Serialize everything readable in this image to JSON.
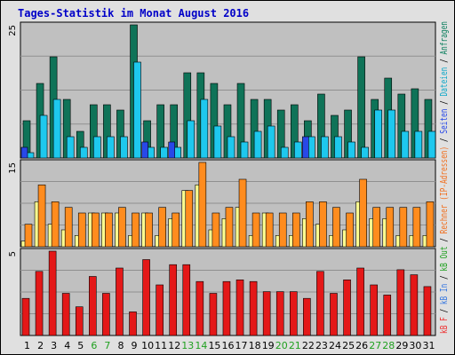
{
  "chart_data": {
    "type": "bar",
    "title": "Tages-Statistik im Monat August 2016",
    "categories": [
      "1",
      "2",
      "3",
      "4",
      "5",
      "6",
      "7",
      "8",
      "9",
      "10",
      "11",
      "12",
      "13",
      "14",
      "15",
      "16",
      "17",
      "18",
      "19",
      "20",
      "21",
      "22",
      "23",
      "24",
      "25",
      "26",
      "27",
      "28",
      "29",
      "30",
      "31"
    ],
    "weekend_days": [
      "6",
      "7",
      "13",
      "14",
      "20",
      "21",
      "27",
      "28"
    ],
    "panels": [
      {
        "name": "top",
        "ymax": 25,
        "ytick": "25",
        "series": [
          {
            "name": "Anfragen",
            "color": "#0f7358",
            "values": [
              7,
              14,
              19,
              11,
              5,
              10,
              10,
              9,
              25,
              7,
              10,
              10,
              16,
              16,
              14,
              10,
              14,
              11,
              11,
              9,
              10,
              7,
              12,
              8,
              9,
              19,
              11,
              15,
              12,
              13,
              11
            ]
          },
          {
            "name": "Dateien",
            "color": "#1ec8ee",
            "values": [
              1,
              8,
              11,
              4,
              2,
              4,
              4,
              4,
              18,
              2,
              2,
              2,
              7,
              11,
              6,
              4,
              3,
              5,
              6,
              2,
              3,
              4,
              4,
              4,
              3,
              2,
              9,
              9,
              5,
              5,
              5
            ]
          },
          {
            "name": "Seiten",
            "color": "#2848e8",
            "values": [
              2,
              0,
              0,
              0,
              0,
              0,
              0,
              0,
              0,
              3,
              0,
              3,
              0,
              0,
              0,
              0,
              0,
              0,
              0,
              0,
              0,
              4,
              0,
              0,
              0,
              0,
              0,
              0,
              0,
              0,
              0
            ]
          }
        ]
      },
      {
        "name": "middle",
        "ymax": 15,
        "ytick": "15",
        "series": [
          {
            "name": "Rechner (IP-Adressen)",
            "color": "#ffff90",
            "values": [
              1,
              8,
              4,
              3,
              2,
              6,
              6,
              6,
              2,
              6,
              2,
              5,
              10,
              11,
              3,
              5,
              7,
              2,
              6,
              2,
              2,
              5,
              4,
              2,
              3,
              8,
              5,
              5,
              2,
              2,
              2
            ]
          },
          {
            "name": "kB Out",
            "color": "#ff8c1e",
            "values": [
              4,
              11,
              8,
              7,
              6,
              6,
              6,
              7,
              6,
              6,
              7,
              6,
              10,
              15,
              6,
              7,
              12,
              6,
              6,
              6,
              6,
              8,
              8,
              7,
              6,
              12,
              7,
              7,
              7,
              7,
              8
            ]
          }
        ]
      },
      {
        "name": "bottom",
        "ymax": 5,
        "ytick": "5",
        "series": [
          {
            "name": "kB F",
            "color": "#e41818",
            "values": [
              2.2,
              3.8,
              5.0,
              2.5,
              1.7,
              3.5,
              2.5,
              4.0,
              1.4,
              4.5,
              3.0,
              4.2,
              4.2,
              3.2,
              2.5,
              3.2,
              3.3,
              3.2,
              2.6,
              2.6,
              2.6,
              2.2,
              3.8,
              2.5,
              3.3,
              4.0,
              3.0,
              2.4,
              3.9,
              3.6,
              2.9
            ]
          }
        ]
      }
    ],
    "legend": [
      {
        "text": "kB F",
        "color": "#ee3030"
      },
      {
        "text": " / ",
        "color": "#000000"
      },
      {
        "text": "kB In",
        "color": "#3878e0"
      },
      {
        "text": " / ",
        "color": "#000000"
      },
      {
        "text": "kB Out",
        "color": "#20a020"
      },
      {
        "text": " / ",
        "color": "#000000"
      },
      {
        "text": "Rechner (IP-Adressen)",
        "color": "#f07020"
      },
      {
        "text": " / ",
        "color": "#000000"
      },
      {
        "text": "Seiten",
        "color": "#2848e8"
      },
      {
        "text": " / ",
        "color": "#000000"
      },
      {
        "text": "Dateien",
        "color": "#10a8c8"
      },
      {
        "text": " / ",
        "color": "#000000"
      },
      {
        "text": "Anfragen",
        "color": "#108060"
      }
    ],
    "colors": {
      "title": "#0000c8",
      "weekend_day": "#20a020",
      "weekday": "#000000",
      "plot_background": "#c0c0c0",
      "frame_background": "#e0e0e0",
      "grid": "#909090"
    }
  }
}
